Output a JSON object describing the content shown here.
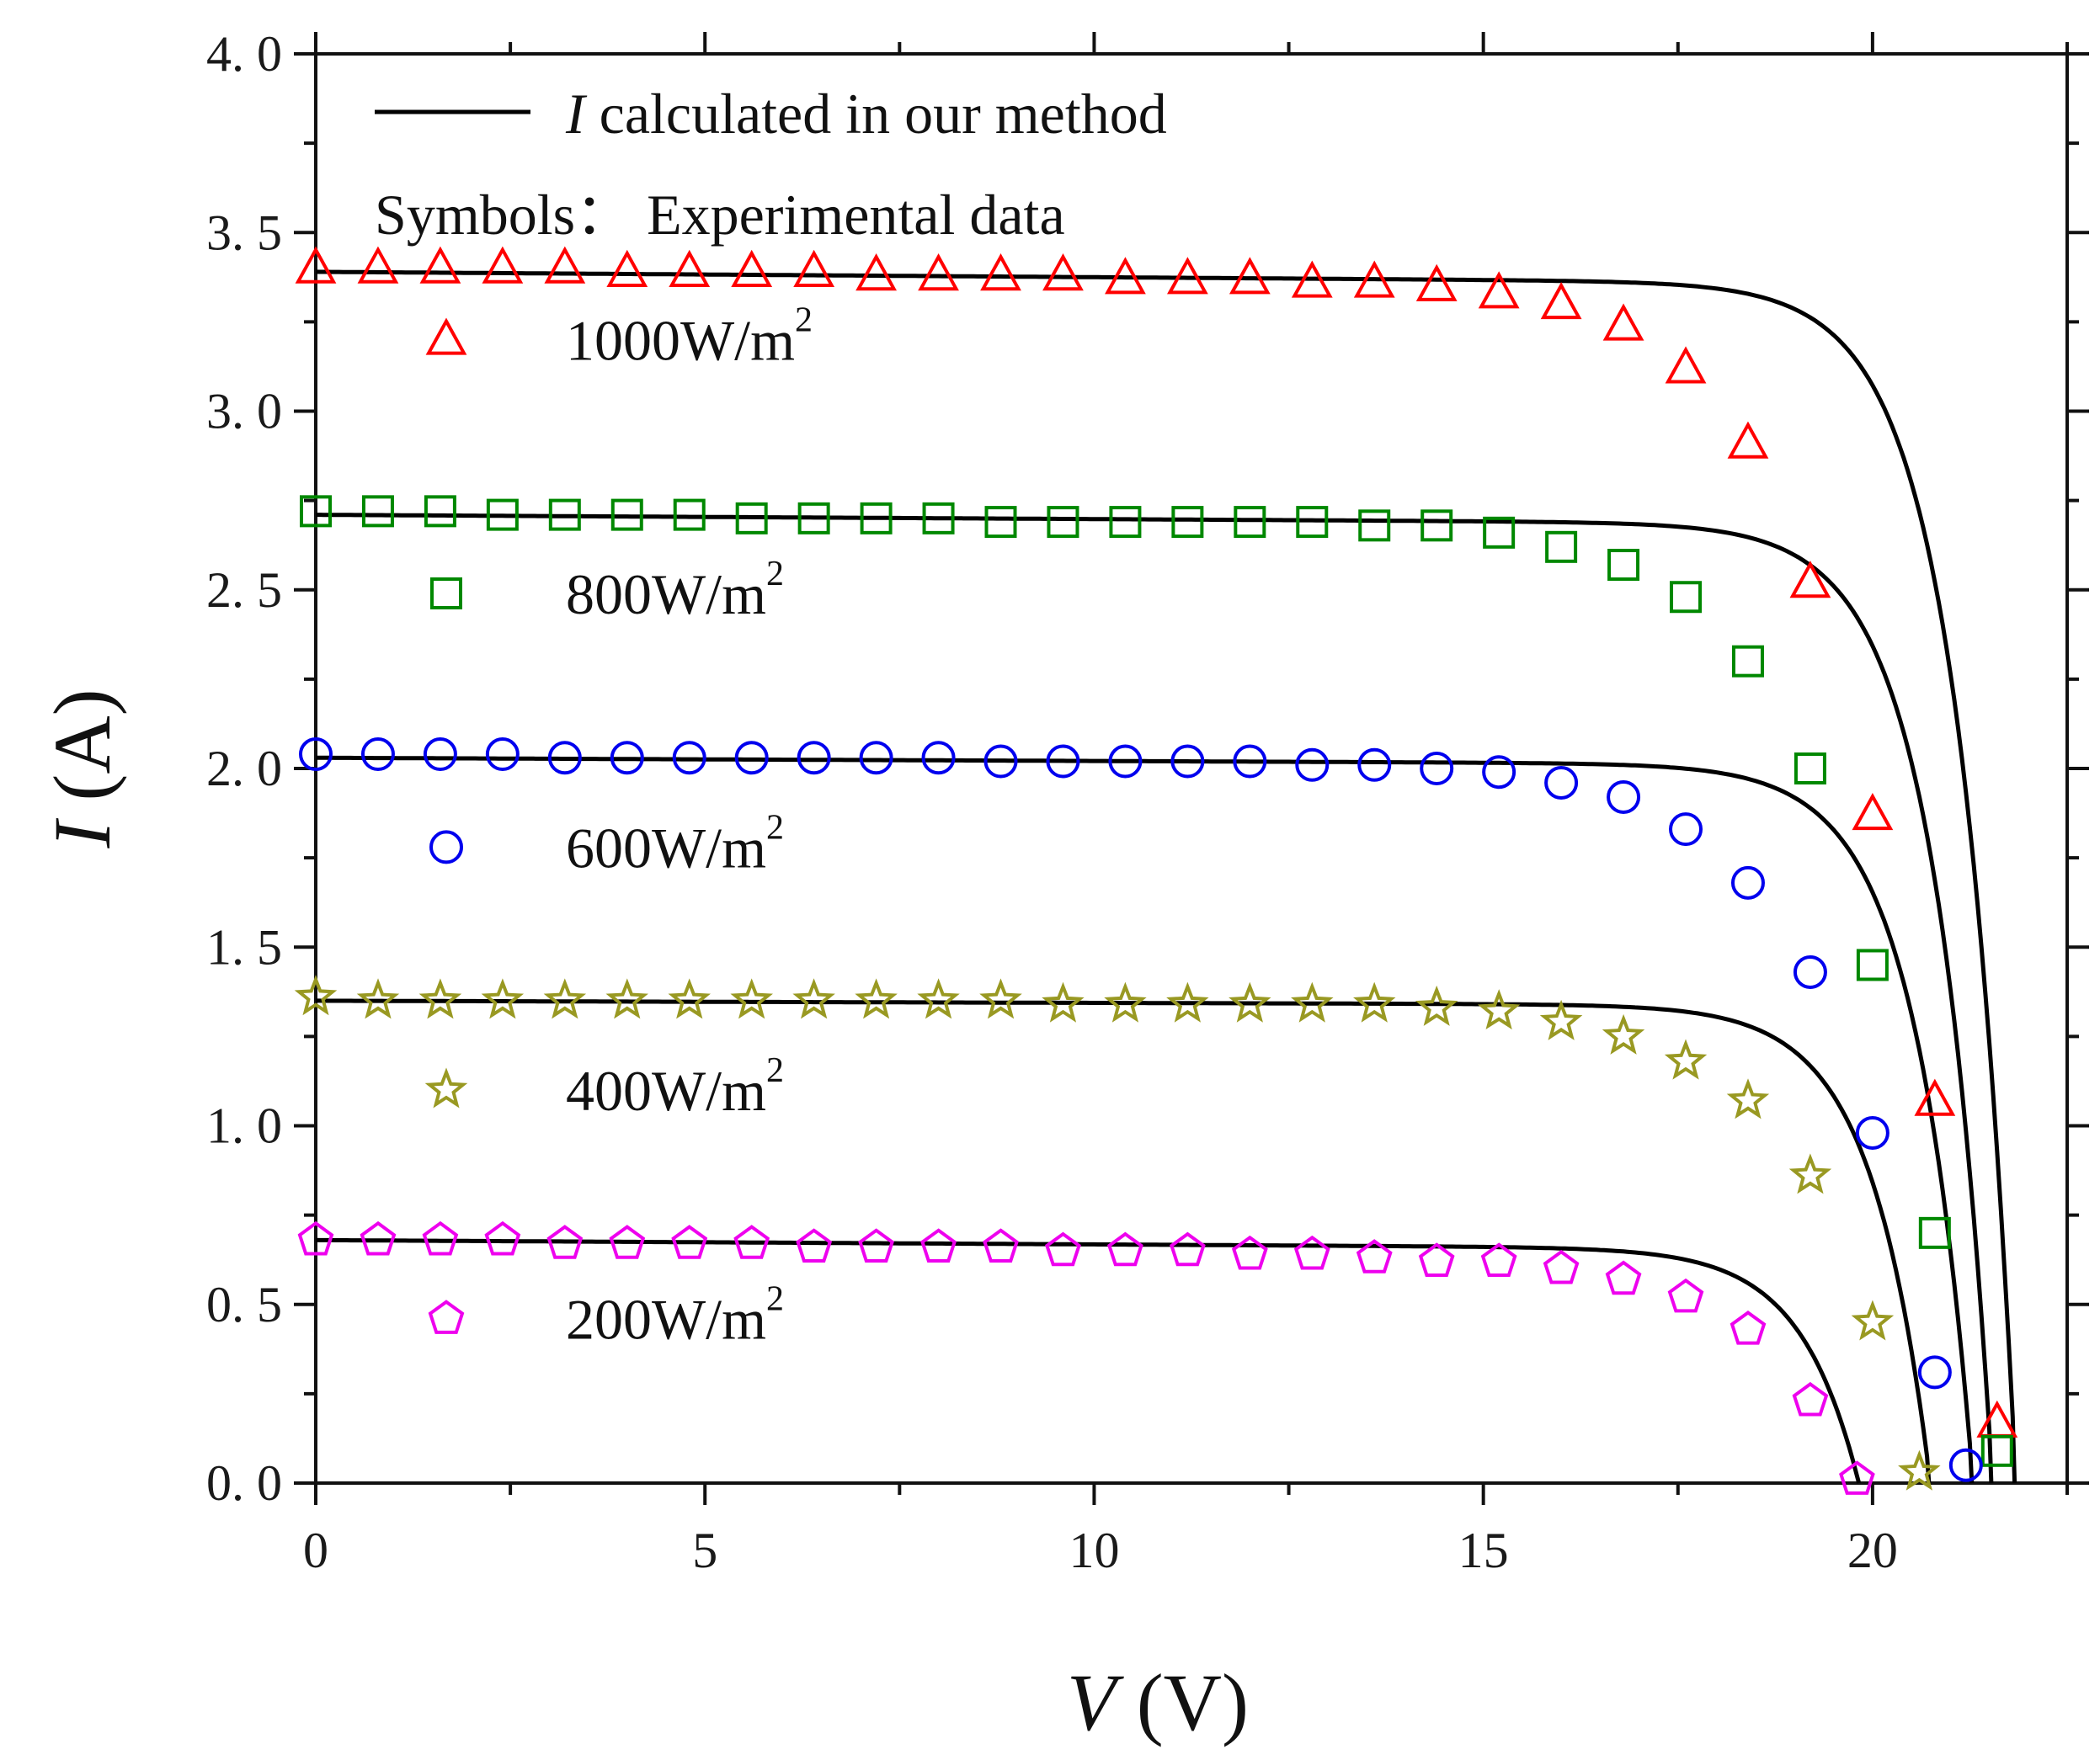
{
  "chart_data": {
    "type": "line",
    "xlabel": {
      "italic": "V",
      "rest": " (V)"
    },
    "ylabel": {
      "italic": "I",
      "rest": " (A)"
    },
    "xlim": [
      0,
      22.5
    ],
    "ylim": [
      0,
      4.0
    ],
    "x_ticks": [
      0,
      5,
      10,
      15,
      20
    ],
    "x_tick_labels": [
      "0",
      "5",
      "10",
      "15",
      "20"
    ],
    "y_ticks": [
      0,
      0.5,
      1.0,
      1.5,
      2.0,
      2.5,
      3.0,
      3.5,
      4.0
    ],
    "y_tick_labels": [
      "0. 0",
      "0. 5",
      "1. 0",
      "1. 5",
      "2. 0",
      "2. 5",
      "3. 0",
      "3. 5",
      "4. 0"
    ],
    "grid": false,
    "legend_placement": "top-left",
    "legend": {
      "line_entry": {
        "italic": "I",
        "rest": " calculated in our method"
      },
      "symbols_note": "Symbols： Experimental data"
    },
    "colors": {
      "model_line": "#000000",
      "1000": "#ff0000",
      "800": "#008800",
      "600": "#0000ee",
      "400": "#999922",
      "200": "#ee00ee"
    },
    "series": [
      {
        "name": "1000W/m",
        "name_sup": "2",
        "marker": "triangle",
        "color_key": "1000",
        "experimental": {
          "x": [
            0.0,
            0.8,
            1.6,
            2.4,
            3.2,
            4.0,
            4.8,
            5.6,
            6.4,
            7.2,
            8.0,
            8.8,
            9.6,
            10.4,
            11.2,
            12.0,
            12.8,
            13.6,
            14.4,
            15.2,
            16.0,
            16.8,
            17.6,
            18.4,
            19.2,
            20.0,
            20.8,
            21.6
          ],
          "y": [
            3.4,
            3.4,
            3.4,
            3.4,
            3.4,
            3.39,
            3.39,
            3.39,
            3.39,
            3.38,
            3.38,
            3.38,
            3.38,
            3.37,
            3.37,
            3.37,
            3.36,
            3.36,
            3.35,
            3.33,
            3.3,
            3.24,
            3.12,
            2.91,
            2.52,
            1.87,
            1.07,
            0.17
          ]
        },
        "model": {
          "isc": 3.39,
          "slope": 0.0015,
          "voc": 21.85,
          "vt": 0.75
        }
      },
      {
        "name": "800W/m",
        "name_sup": "2",
        "marker": "square",
        "color_key": "800",
        "experimental": {
          "x": [
            0.0,
            0.8,
            1.6,
            2.4,
            3.2,
            4.0,
            4.8,
            5.6,
            6.4,
            7.2,
            8.0,
            8.8,
            9.6,
            10.4,
            11.2,
            12.0,
            12.8,
            13.6,
            14.4,
            15.2,
            16.0,
            16.8,
            17.6,
            18.4,
            19.2,
            20.0,
            20.8,
            21.6
          ],
          "y": [
            2.72,
            2.72,
            2.72,
            2.71,
            2.71,
            2.71,
            2.71,
            2.7,
            2.7,
            2.7,
            2.7,
            2.69,
            2.69,
            2.69,
            2.69,
            2.69,
            2.69,
            2.68,
            2.68,
            2.66,
            2.62,
            2.57,
            2.48,
            2.3,
            2.0,
            1.45,
            0.7,
            0.09
          ]
        },
        "model": {
          "isc": 2.71,
          "slope": 0.0012,
          "voc": 21.55,
          "vt": 0.75
        }
      },
      {
        "name": "600W/m",
        "name_sup": "2",
        "marker": "circle",
        "color_key": "600",
        "experimental": {
          "x": [
            0.0,
            0.8,
            1.6,
            2.4,
            3.2,
            4.0,
            4.8,
            5.6,
            6.4,
            7.2,
            8.0,
            8.8,
            9.6,
            10.4,
            11.2,
            12.0,
            12.8,
            13.6,
            14.4,
            15.2,
            16.0,
            16.8,
            17.6,
            18.4,
            19.2,
            20.0,
            20.8,
            21.2
          ],
          "y": [
            2.04,
            2.04,
            2.04,
            2.04,
            2.03,
            2.03,
            2.03,
            2.03,
            2.03,
            2.03,
            2.03,
            2.02,
            2.02,
            2.02,
            2.02,
            2.02,
            2.01,
            2.01,
            2.0,
            1.99,
            1.96,
            1.92,
            1.83,
            1.68,
            1.43,
            0.98,
            0.31,
            0.05
          ]
        },
        "model": {
          "isc": 2.03,
          "slope": 0.0009,
          "voc": 21.3,
          "vt": 0.75
        }
      },
      {
        "name": "400W/m",
        "name_sup": "2",
        "marker": "star",
        "color_key": "400",
        "experimental": {
          "x": [
            0.0,
            0.8,
            1.6,
            2.4,
            3.2,
            4.0,
            4.8,
            5.6,
            6.4,
            7.2,
            8.0,
            8.8,
            9.6,
            10.4,
            11.2,
            12.0,
            12.8,
            13.6,
            14.4,
            15.2,
            16.0,
            16.8,
            17.6,
            18.4,
            19.2,
            20.0,
            20.6
          ],
          "y": [
            1.36,
            1.35,
            1.35,
            1.35,
            1.35,
            1.35,
            1.35,
            1.35,
            1.35,
            1.35,
            1.35,
            1.35,
            1.34,
            1.34,
            1.34,
            1.34,
            1.34,
            1.34,
            1.33,
            1.32,
            1.29,
            1.25,
            1.18,
            1.07,
            0.86,
            0.45,
            0.03
          ]
        },
        "model": {
          "isc": 1.35,
          "slope": 0.0006,
          "voc": 20.75,
          "vt": 0.75
        }
      },
      {
        "name": "200W/m",
        "name_sup": "2",
        "marker": "pentagon",
        "color_key": "200",
        "experimental": {
          "x": [
            0.0,
            0.8,
            1.6,
            2.4,
            3.2,
            4.0,
            4.8,
            5.6,
            6.4,
            7.2,
            8.0,
            8.8,
            9.6,
            10.4,
            11.2,
            12.0,
            12.8,
            13.6,
            14.4,
            15.2,
            16.0,
            16.8,
            17.6,
            18.4,
            19.2,
            19.8
          ],
          "y": [
            0.68,
            0.68,
            0.68,
            0.68,
            0.67,
            0.67,
            0.67,
            0.67,
            0.66,
            0.66,
            0.66,
            0.66,
            0.65,
            0.65,
            0.65,
            0.64,
            0.64,
            0.63,
            0.62,
            0.62,
            0.6,
            0.57,
            0.52,
            0.43,
            0.23,
            0.01
          ]
        },
        "model": {
          "isc": 0.68,
          "slope": 0.0012,
          "voc": 19.85,
          "vt": 0.75
        }
      }
    ]
  }
}
